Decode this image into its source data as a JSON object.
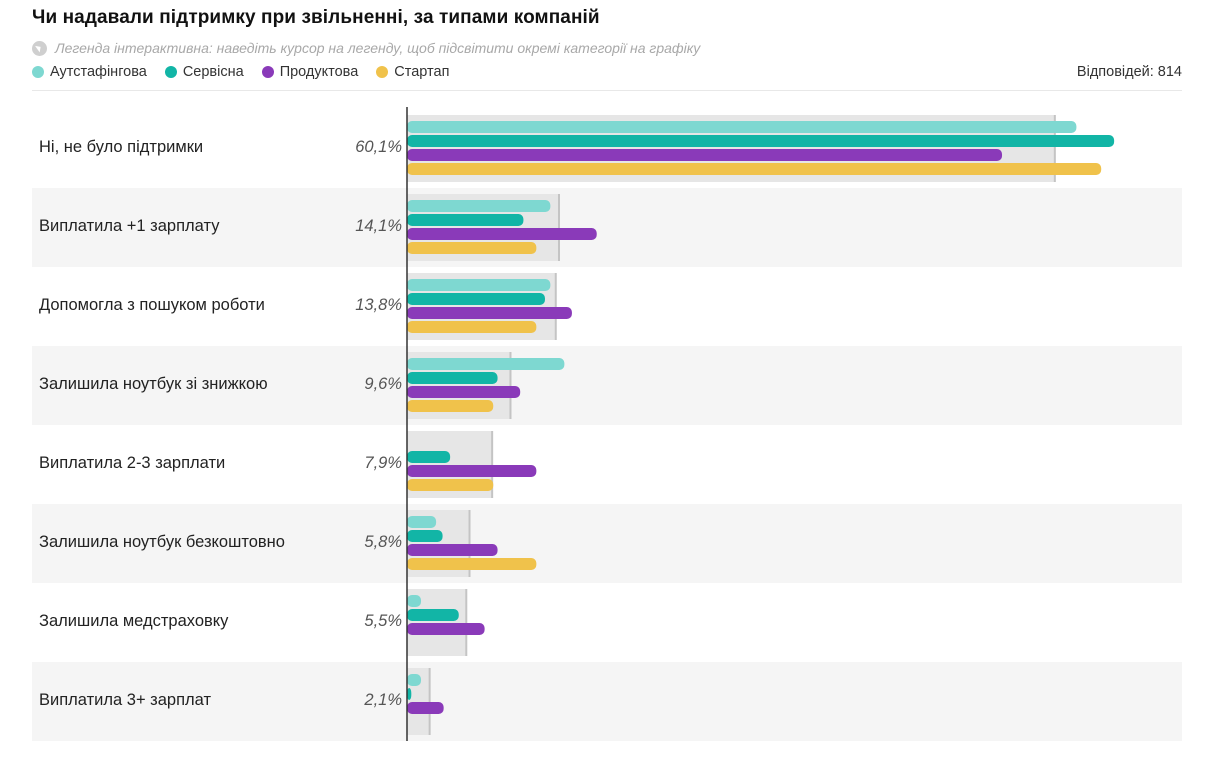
{
  "header": {
    "title": "Чи надавали підтримку при звільненні, за типами компаній",
    "hint": "Легенда інтерактивна: наведіть курсор на легенду, щоб підсвітити окремі категорії на графіку",
    "responses": "Відповідей: 814"
  },
  "colors": {
    "row_bg_alt": "#f5f5f5",
    "total_bar": "#e6e6e6",
    "total_marker": "#c4c4c4",
    "axis": "#333333"
  },
  "chart_data": {
    "type": "bar",
    "orientation": "horizontal",
    "title": "Чи надавали підтримку при звільненні, за типами компаній",
    "xlim": [
      0,
      68
    ],
    "categories": [
      "Ні, не було підтримки",
      "Виплатила +1 зарплату",
      "Допомогла з пошуком роботи",
      "Залишила ноутбук зі знижкою",
      "Виплатила 2-3 зарплати",
      "Залишила ноутбук безкоштовно",
      "Залишила медстраховку",
      "Виплатила 3+ зарплат"
    ],
    "total_labels": [
      "60,1%",
      "14,1%",
      "13,8%",
      "9,6%",
      "7,9%",
      "5,8%",
      "5,5%",
      "2,1%"
    ],
    "totals": [
      60.1,
      14.1,
      13.8,
      9.6,
      7.9,
      5.8,
      5.5,
      2.1
    ],
    "series": [
      {
        "name": "Аутстафінгова",
        "color": "#7ed8d1",
        "values": [
          62.1,
          13.3,
          13.3,
          14.6,
          0,
          2.7,
          1.3,
          1.3
        ]
      },
      {
        "name": "Сервісна",
        "color": "#12b5a6",
        "values": [
          65.6,
          10.8,
          12.8,
          8.4,
          4.0,
          3.3,
          4.8,
          0.4
        ]
      },
      {
        "name": "Продуктова",
        "color": "#8a3ab9",
        "values": [
          55.2,
          17.6,
          15.3,
          10.5,
          12.0,
          8.4,
          7.2,
          3.4
        ]
      },
      {
        "name": "Стартап",
        "color": "#f0c24b",
        "values": [
          64.4,
          12.0,
          12.0,
          8.0,
          8.0,
          12.0,
          0,
          0
        ]
      }
    ]
  }
}
